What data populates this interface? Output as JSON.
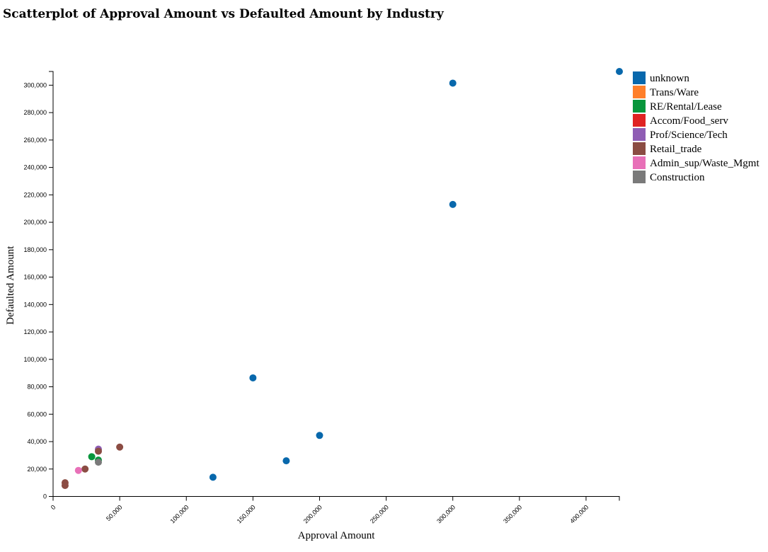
{
  "chart_data": {
    "type": "scatter",
    "title": "Scatterplot of Approval Amount vs Defaulted Amount by Industry",
    "xlabel": "Approval Amount",
    "ylabel": "Defaulted Amount",
    "xlim": [
      0,
      425000
    ],
    "ylim": [
      0,
      310000
    ],
    "x_ticks": [
      "0",
      "50,000",
      "100,000",
      "150,000",
      "200,000",
      "250,000",
      "300,000",
      "350,000",
      "400,000"
    ],
    "y_ticks": [
      "0",
      "20,000",
      "40,000",
      "60,000",
      "80,000",
      "100,000",
      "120,000",
      "140,000",
      "160,000",
      "180,000",
      "200,000",
      "220,000",
      "240,000",
      "260,000",
      "280,000",
      "300,000"
    ],
    "x_tick_values": [
      0,
      50000,
      100000,
      150000,
      200000,
      250000,
      300000,
      350000,
      400000
    ],
    "y_tick_values": [
      0,
      20000,
      40000,
      60000,
      80000,
      100000,
      120000,
      140000,
      160000,
      180000,
      200000,
      220000,
      240000,
      260000,
      280000,
      300000
    ],
    "grid": false,
    "legend_position": "top-right",
    "series": [
      {
        "name": "unknown",
        "color": "#0868ac",
        "points": [
          [
            425000,
            310000
          ],
          [
            300000,
            301500
          ],
          [
            300000,
            213000
          ],
          [
            150000,
            86500
          ],
          [
            200000,
            44500
          ],
          [
            175000,
            26000
          ],
          [
            120000,
            14000
          ]
        ]
      },
      {
        "name": "Trans/Ware",
        "color": "#ff7f2a",
        "points": []
      },
      {
        "name": "RE/Rental/Lease",
        "color": "#08963c",
        "points": [
          [
            29000,
            29000
          ],
          [
            34000,
            26500
          ]
        ]
      },
      {
        "name": "Accom/Food_serv",
        "color": "#e02323",
        "points": []
      },
      {
        "name": "Prof/Science/Tech",
        "color": "#8f5db4",
        "points": [
          [
            34000,
            34500
          ]
        ]
      },
      {
        "name": "Retail_trade",
        "color": "#8b4c43",
        "points": [
          [
            50000,
            36000
          ],
          [
            34000,
            33000
          ],
          [
            24000,
            20000
          ],
          [
            9000,
            10000
          ],
          [
            9000,
            8000
          ]
        ]
      },
      {
        "name": "Admin_sup/Waste_Mgmt",
        "color": "#e870b8",
        "points": [
          [
            19000,
            19000
          ]
        ]
      },
      {
        "name": "Construction",
        "color": "#7a7a7a",
        "points": [
          [
            34000,
            25000
          ]
        ]
      }
    ]
  }
}
